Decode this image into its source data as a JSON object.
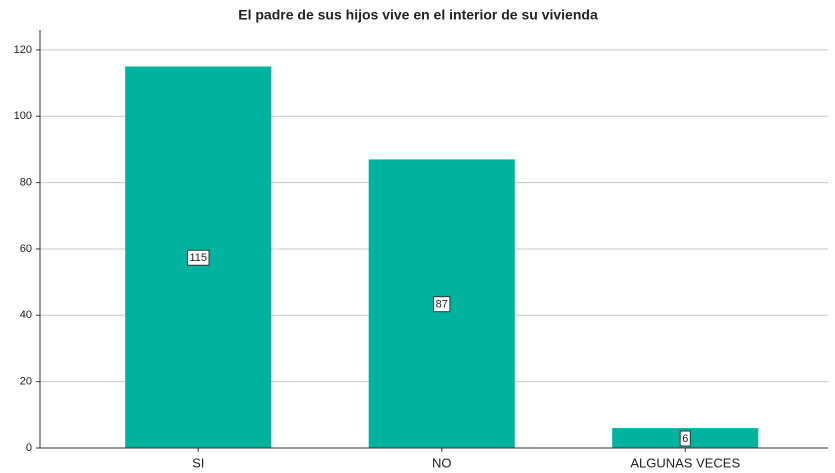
{
  "chart_data": {
    "type": "bar",
    "title": "El padre de sus hijos vive en el interior de su vivienda",
    "categories": [
      "SI",
      "NO",
      "ALGUNAS VECES"
    ],
    "values": [
      115,
      87,
      6
    ],
    "color": "#00b39e",
    "ylim": [
      0,
      126
    ],
    "yticks": [
      0,
      20,
      40,
      60,
      80,
      100,
      120
    ],
    "grid": true
  }
}
